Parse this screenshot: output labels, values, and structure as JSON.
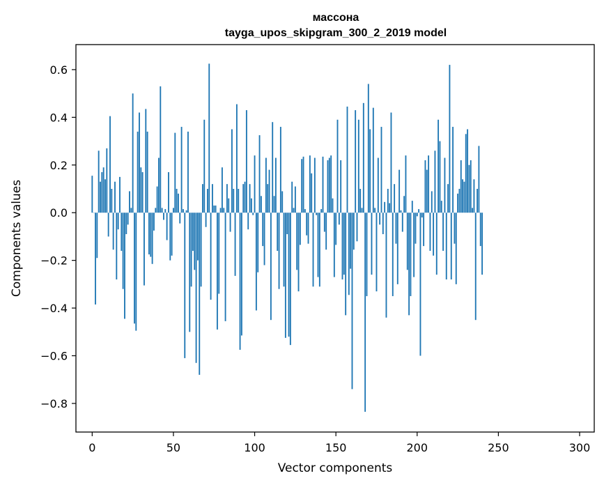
{
  "chart_data": {
    "type": "bar",
    "title_line1": "массона",
    "title_line2": "tayga_upos_skipgram_300_2_2019 model",
    "xlabel": "Vector components",
    "ylabel": "Components values",
    "xlim": [
      -10,
      309
    ],
    "ylim": [
      -0.92,
      0.705
    ],
    "xticks": [
      0,
      50,
      100,
      150,
      200,
      250,
      300
    ],
    "xtick_labels": [
      "0",
      "50",
      "100",
      "150",
      "200",
      "250",
      "300"
    ],
    "yticks": [
      -0.8,
      -0.6,
      -0.4,
      -0.2,
      0.0,
      0.2,
      0.4,
      0.6
    ],
    "ytick_labels": [
      "−0.8",
      "−0.6",
      "−0.4",
      "−0.2",
      "0.0",
      "0.2",
      "0.4",
      "0.6"
    ],
    "bar_color": "#1f77b4",
    "values": [
      0.155,
      0.0,
      -0.385,
      -0.19,
      0.26,
      0.13,
      0.17,
      0.19,
      0.14,
      0.27,
      -0.1,
      0.405,
      0.1,
      -0.155,
      0.13,
      -0.28,
      -0.07,
      0.15,
      -0.16,
      -0.32,
      -0.445,
      -0.09,
      -0.05,
      0.09,
      0.02,
      0.5,
      -0.465,
      -0.495,
      0.34,
      0.42,
      0.19,
      0.17,
      -0.305,
      0.435,
      0.34,
      -0.175,
      -0.185,
      -0.215,
      -0.075,
      0.02,
      0.11,
      0.23,
      0.53,
      0.02,
      -0.03,
      0.015,
      -0.115,
      0.17,
      -0.2,
      -0.18,
      0.02,
      0.335,
      0.1,
      0.08,
      -0.045,
      0.36,
      0.015,
      -0.61,
      0.01,
      0.34,
      -0.5,
      -0.31,
      -0.16,
      -0.24,
      -0.63,
      -0.2,
      -0.68,
      -0.31,
      0.12,
      0.39,
      -0.06,
      0.1,
      0.625,
      -0.365,
      0.12,
      0.03,
      0.03,
      -0.49,
      -0.34,
      0.02,
      0.19,
      0.02,
      -0.455,
      0.12,
      0.06,
      -0.08,
      0.35,
      0.1,
      -0.265,
      0.455,
      0.1,
      -0.575,
      -0.515,
      0.12,
      0.13,
      0.43,
      -0.07,
      0.12,
      0.06,
      -0.01,
      0.24,
      -0.41,
      -0.25,
      0.325,
      0.07,
      -0.14,
      -0.22,
      0.23,
      0.12,
      0.18,
      -0.45,
      0.38,
      0.07,
      0.23,
      -0.16,
      -0.32,
      0.36,
      0.09,
      -0.31,
      -0.525,
      -0.09,
      -0.52,
      -0.555,
      0.13,
      0.02,
      0.11,
      -0.24,
      -0.33,
      -0.135,
      0.225,
      0.235,
      0.015,
      -0.095,
      -0.13,
      0.24,
      0.165,
      -0.31,
      0.23,
      -0.01,
      -0.27,
      -0.31,
      0.015,
      0.235,
      -0.08,
      -0.155,
      0.22,
      0.23,
      0.24,
      0.06,
      -0.27,
      -0.135,
      0.39,
      -0.05,
      0.22,
      -0.28,
      -0.26,
      -0.43,
      0.445,
      -0.345,
      -0.235,
      -0.74,
      -0.155,
      0.43,
      -0.12,
      0.39,
      0.1,
      0.02,
      0.46,
      -0.835,
      -0.35,
      0.54,
      0.35,
      -0.26,
      0.44,
      0.02,
      -0.33,
      0.23,
      -0.05,
      0.36,
      -0.09,
      0.045,
      -0.44,
      0.1,
      0.04,
      0.42,
      -0.35,
      0.12,
      -0.13,
      -0.3,
      0.18,
      0.01,
      -0.08,
      0.07,
      0.24,
      -0.24,
      -0.43,
      -0.35,
      0.05,
      -0.27,
      -0.13,
      -0.015,
      0.015,
      -0.6,
      -0.02,
      -0.14,
      0.22,
      0.18,
      0.24,
      -0.16,
      0.09,
      -0.18,
      0.26,
      -0.26,
      0.39,
      0.3,
      0.05,
      -0.16,
      0.23,
      -0.28,
      0.12,
      0.62,
      -0.28,
      0.36,
      -0.13,
      -0.3,
      0.08,
      0.1,
      0.22,
      0.14,
      0.13,
      0.33,
      0.35,
      0.2,
      0.22,
      0.02,
      0.14,
      -0.45,
      0.1,
      0.28,
      -0.14,
      -0.26
    ]
  }
}
